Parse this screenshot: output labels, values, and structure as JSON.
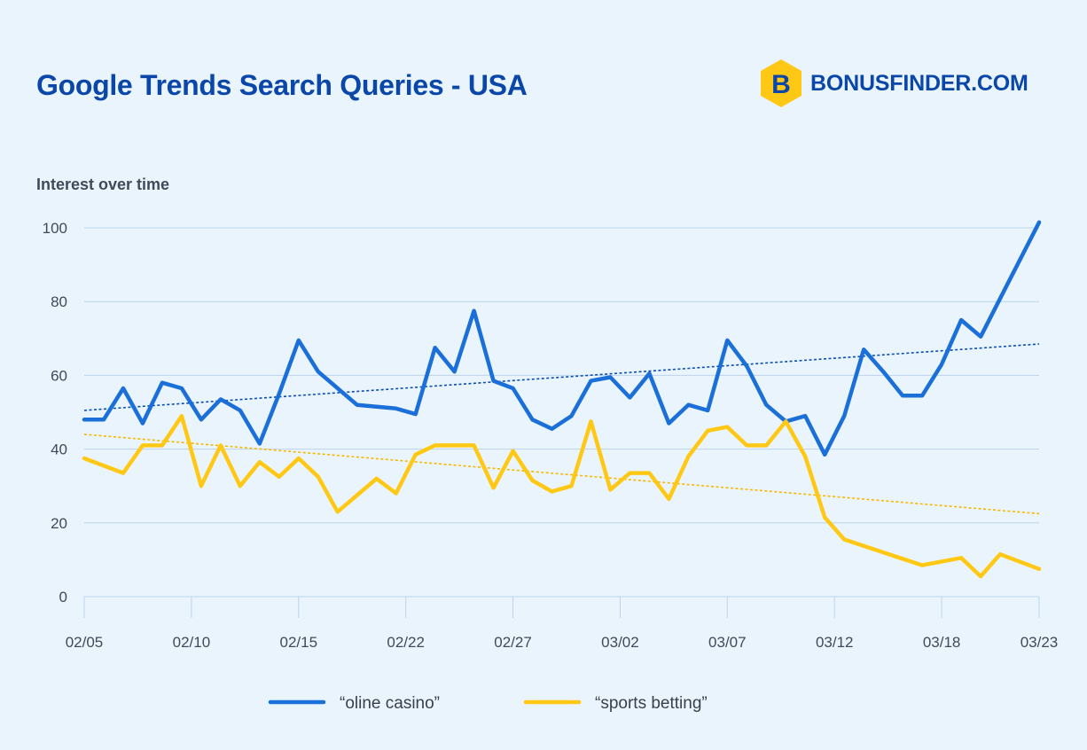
{
  "header": {
    "title": "Google Trends Search Queries - USA",
    "brand": "BONUSFINDER.COM",
    "brand_letter": "B"
  },
  "colors": {
    "background": "#eaf4fd",
    "title": "#0b47a8",
    "casino": "#1b6fd8",
    "betting": "#ffc814",
    "casino_trend": "#0b4fb0",
    "betting_trend": "#f5b800",
    "grid": "#bcd3ec",
    "tick_text": "#3f4a5a",
    "logo_hex": "#ffc814"
  },
  "chart_data": {
    "type": "line",
    "ylabel": "Interest over time",
    "ylim": [
      0,
      100
    ],
    "yticks": [
      0,
      20,
      40,
      60,
      80,
      100
    ],
    "x_count": 48,
    "x_ticks": [
      {
        "index": 0,
        "label": "02/05"
      },
      {
        "index": 5.5,
        "label": "02/10"
      },
      {
        "index": 11,
        "label": "02/15"
      },
      {
        "index": 16.5,
        "label": "02/22"
      },
      {
        "index": 22,
        "label": "02/27"
      },
      {
        "index": 27.5,
        "label": "03/02"
      },
      {
        "index": 33,
        "label": "03/07"
      },
      {
        "index": 38.5,
        "label": "03/12"
      },
      {
        "index": 44,
        "label": "03/18"
      },
      {
        "index": 49,
        "label": "03/23"
      }
    ],
    "x_max_index": 49,
    "series": [
      {
        "name": "“oline casino”",
        "key": "casino",
        "values": [
          48,
          48,
          56.5,
          47,
          58,
          56.5,
          48,
          53.5,
          50.5,
          41.5,
          55,
          69.5,
          61,
          52,
          51.5,
          51,
          49.5,
          67.5,
          61,
          77.5,
          58.5,
          56.5,
          48,
          45.5,
          49,
          58.5,
          59.5,
          54,
          60.5,
          47,
          52,
          50.5,
          69.5,
          62.5,
          52,
          47.5,
          49,
          38.5,
          49,
          67,
          61,
          54.5,
          54.5,
          63,
          75,
          70.5,
          86,
          101.5
        ],
        "x_index": [
          0,
          1,
          2,
          3,
          4,
          5,
          6,
          7,
          8,
          9,
          10,
          11,
          12,
          14,
          15,
          16,
          17,
          18,
          19,
          20,
          21,
          22,
          23,
          24,
          25,
          26,
          27,
          28,
          29,
          30,
          31,
          32,
          33,
          34,
          35,
          36,
          37,
          38,
          39,
          40,
          41,
          42,
          43,
          44,
          45,
          46,
          47.5,
          49
        ],
        "trend": [
          50.5,
          68.5
        ]
      },
      {
        "name": "“sports betting”",
        "key": "betting",
        "values": [
          37.5,
          35.5,
          33.5,
          41,
          41,
          49,
          30,
          41,
          30,
          36.5,
          32.5,
          37.5,
          32.5,
          23,
          32,
          28,
          38.5,
          41,
          41,
          41,
          29.5,
          39.5,
          31.5,
          28.5,
          30,
          47.5,
          29,
          33.5,
          33.5,
          26.5,
          38,
          45,
          46,
          41,
          41,
          47.5,
          38,
          21.5,
          15.5,
          8.5,
          10.5,
          5.5,
          11.5,
          7.5
        ],
        "x_index": [
          0,
          1,
          2,
          3,
          4,
          5,
          6,
          7,
          8,
          9,
          10,
          11,
          12,
          13,
          15,
          16,
          17,
          18,
          19,
          20,
          21,
          22,
          23,
          24,
          25,
          26,
          27,
          28,
          29,
          30,
          31,
          32,
          33,
          34,
          35,
          36,
          37,
          38,
          39,
          43,
          45,
          46,
          47,
          49
        ],
        "trend": [
          44,
          22.5
        ]
      }
    ],
    "legend_position": "bottom-center"
  }
}
